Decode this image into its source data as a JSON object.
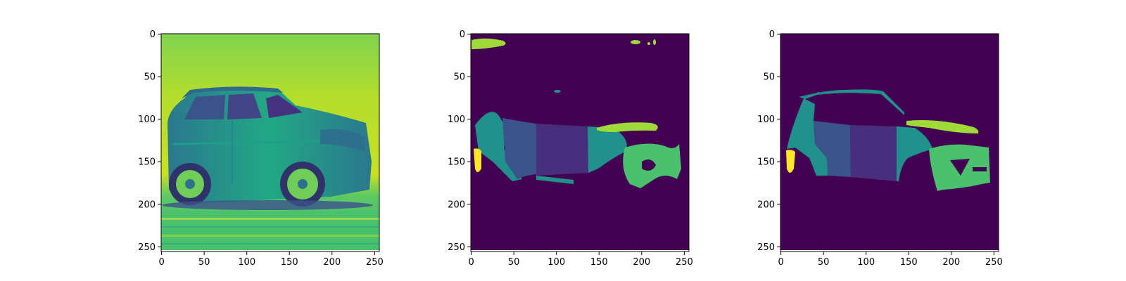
{
  "figure": {
    "panels": [
      {
        "kind": "image",
        "colormap": "viridis",
        "description": "grayscale car photo rendered with viridis colormap"
      },
      {
        "kind": "segmentation",
        "colormap": "viridis",
        "description": "predicted car part segmentation mask"
      },
      {
        "kind": "segmentation",
        "colormap": "viridis",
        "description": "ground truth car part segmentation mask"
      }
    ],
    "x_ticks": [
      "0",
      "50",
      "100",
      "150",
      "200",
      "250"
    ],
    "y_ticks": [
      "0",
      "50",
      "100",
      "150",
      "200",
      "250"
    ],
    "x_range": [
      0,
      255
    ],
    "y_range": [
      0,
      255
    ],
    "colors": {
      "background": "#440154",
      "dark_blue": "#3b528b",
      "indigo": "#482878",
      "teal": "#21918c",
      "green": "#5ec962",
      "lime": "#a0da39",
      "yellow": "#fde725"
    }
  }
}
